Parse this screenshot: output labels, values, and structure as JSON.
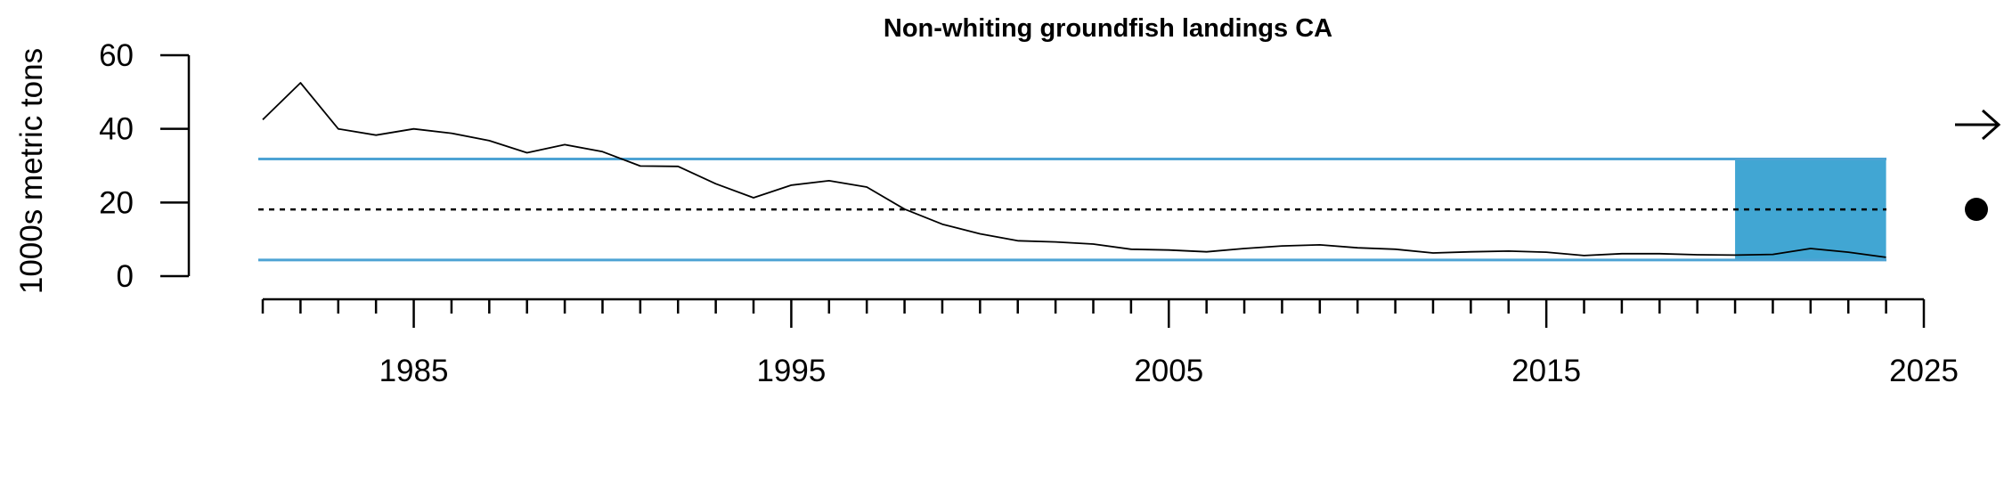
{
  "chart_data": {
    "type": "line",
    "title": "Non-whiting groundfish landings CA",
    "ylabel": "1000s metric tons",
    "xlabel": "",
    "xlim": [
      1981,
      2025
    ],
    "ylim": [
      0,
      60
    ],
    "x_tick_labels": [
      "1985",
      "1995",
      "2005",
      "2015",
      "2025"
    ],
    "y_tick_labels": [
      "0",
      "20",
      "40",
      "60"
    ],
    "grid": false,
    "series": [
      {
        "x": [
          1981,
          1982,
          1983,
          1984,
          1985,
          1986,
          1987,
          1988,
          1989,
          1990,
          1991,
          1992,
          1993,
          1994,
          1995,
          1996,
          1997,
          1998,
          1999,
          2000,
          2001,
          2002,
          2003,
          2004,
          2005,
          2006,
          2007,
          2008,
          2009,
          2010,
          2011,
          2012,
          2013,
          2014,
          2015,
          2016,
          2017,
          2018,
          2019,
          2020,
          2021,
          2022,
          2023,
          2024
        ],
        "values": [
          42.5,
          52.5,
          40,
          38.3,
          40,
          38.8,
          36.8,
          33.5,
          35.7,
          33.8,
          29.9,
          29.8,
          25.1,
          21.3,
          24.7,
          25.9,
          24.2,
          18.2,
          14.1,
          11.5,
          9.6,
          9.3,
          8.7,
          7.3,
          7.1,
          6.6,
          7.5,
          8.2,
          8.5,
          7.7,
          7.3,
          6.3,
          6.6,
          6.8,
          6.5,
          5.6,
          6.1,
          6.1,
          5.8,
          5.7,
          5.9,
          7.5,
          6.5,
          5.1
        ]
      }
    ],
    "reference_lines": {
      "mean": 18.1,
      "upper_sd": 31.8,
      "lower_sd": 4.4
    },
    "highlight_period": {
      "start": 2020,
      "end": 2024
    },
    "trend_indicator": "arrow-right",
    "mean_indicator": "dot",
    "colors": {
      "series": "#000000",
      "sd_lines": "#4da3d4",
      "highlight": "#41a6d3",
      "mean_line": "#000000"
    }
  }
}
